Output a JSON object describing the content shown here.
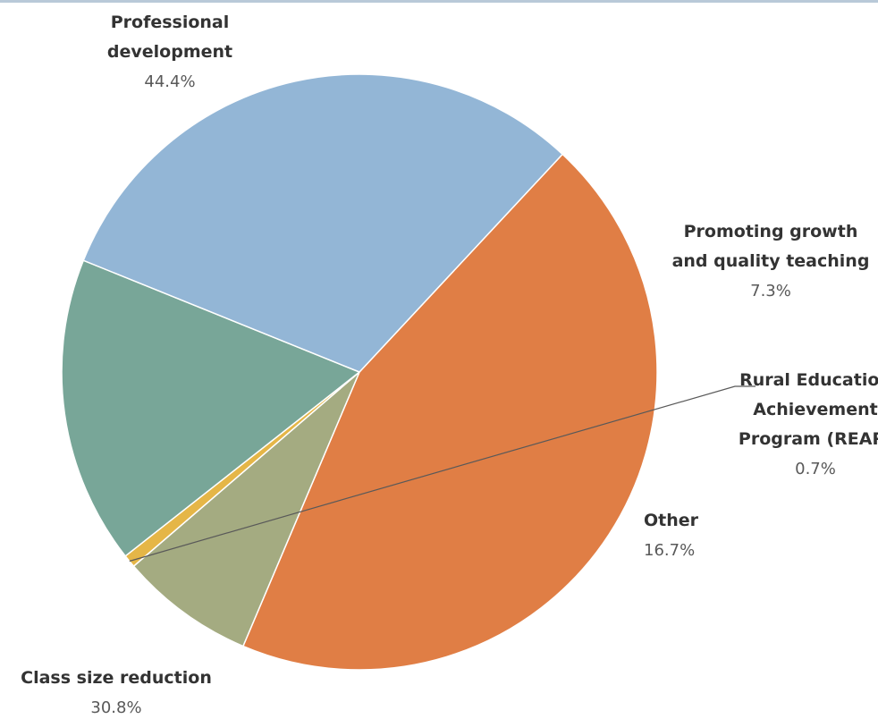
{
  "chart_data": {
    "type": "pie",
    "slices": [
      {
        "label_lines": [
          "Professional",
          "development"
        ],
        "value": 44.4,
        "value_label": "44.4%",
        "color": "#E07E45"
      },
      {
        "label_lines": [
          "Promoting growth",
          "and quality teaching"
        ],
        "value": 7.3,
        "value_label": "7.3%",
        "color": "#A4AB81"
      },
      {
        "label_lines": [
          "Rural Education",
          "Achievement",
          "Program (REAP)"
        ],
        "value": 0.7,
        "value_label": "0.7%",
        "color": "#E5B647"
      },
      {
        "label_lines": [
          "Other"
        ],
        "value": 16.7,
        "value_label": "16.7%",
        "color": "#78A698"
      },
      {
        "label_lines": [
          "Class size reduction"
        ],
        "value": 30.8,
        "value_label": "30.8%",
        "color": "#93B6D6"
      }
    ]
  }
}
